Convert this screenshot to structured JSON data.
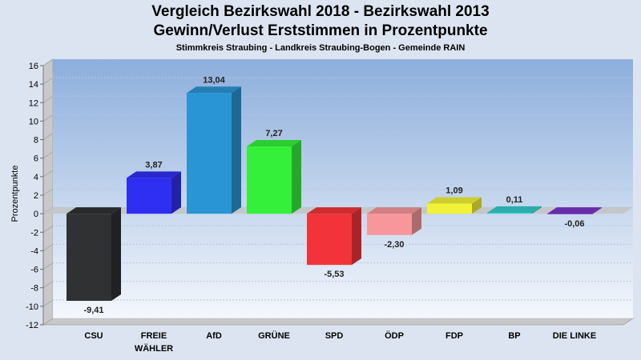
{
  "chart_data": {
    "type": "bar",
    "title": "Vergleich Bezirkswahl 2018 - Bezirkswahl 2013",
    "title2": "Gewinn/Verlust Erststimmen in Prozentpunkte",
    "subtitle": "Stimmkreis Straubing - Landkreis Straubing-Bogen - Gemeinde RAIN",
    "ylabel": "Prozentpunkte",
    "ylim": [
      -12,
      16
    ],
    "yticks": [
      16,
      14,
      12,
      10,
      8,
      6,
      4,
      2,
      0,
      -2,
      -4,
      -6,
      -8,
      -10,
      -12
    ],
    "grid": true,
    "categories": [
      {
        "label": "CSU",
        "label2": ""
      },
      {
        "label": "FREIE",
        "label2": "WÄHLER"
      },
      {
        "label": "AfD",
        "label2": ""
      },
      {
        "label": "GRÜNE",
        "label2": ""
      },
      {
        "label": "SPD",
        "label2": ""
      },
      {
        "label": "ÖDP",
        "label2": ""
      },
      {
        "label": "FDP",
        "label2": ""
      },
      {
        "label": "BP",
        "label2": ""
      },
      {
        "label": "DIE LINKE",
        "label2": ""
      }
    ],
    "values": [
      -9.41,
      3.87,
      13.04,
      7.27,
      -5.53,
      -2.3,
      1.09,
      0.11,
      -0.06
    ],
    "value_labels": [
      "-9,41",
      "3,87",
      "13,04",
      "7,27",
      "-5,53",
      "-2,30",
      "1,09",
      "0,11",
      "-0,06"
    ],
    "colors": [
      "#2f3133",
      "#2f2ff2",
      "#2a95d4",
      "#35f03a",
      "#f2343a",
      "#f7979b",
      "#f2f238",
      "#33cccc",
      "#7a35c8"
    ]
  }
}
